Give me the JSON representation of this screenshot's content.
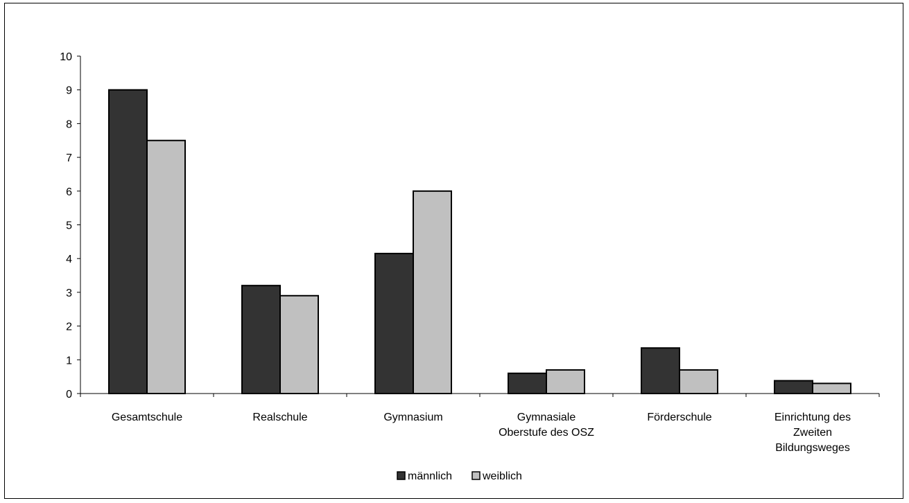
{
  "chart_data": {
    "type": "bar",
    "categories": [
      [
        "Gesamtschule"
      ],
      [
        "Realschule"
      ],
      [
        "Gymnasium"
      ],
      [
        "Gymnasiale",
        "Oberstufe des OSZ"
      ],
      [
        "Förderschule"
      ],
      [
        "Einrichtung des",
        "Zweiten",
        "Bildungsweges"
      ]
    ],
    "series": [
      {
        "name": "männlich",
        "color": "#333333",
        "values": [
          9.0,
          3.2,
          4.15,
          0.6,
          1.35,
          0.38
        ]
      },
      {
        "name": "weiblich",
        "color": "#c0c0c0",
        "values": [
          7.5,
          2.9,
          6.0,
          0.7,
          0.7,
          0.3
        ]
      }
    ],
    "ylim": [
      0,
      10
    ],
    "yticks": [
      0,
      1,
      2,
      3,
      4,
      5,
      6,
      7,
      8,
      9,
      10
    ],
    "legend_position": "bottom",
    "grid": false,
    "title": "",
    "xlabel": "",
    "ylabel": ""
  }
}
